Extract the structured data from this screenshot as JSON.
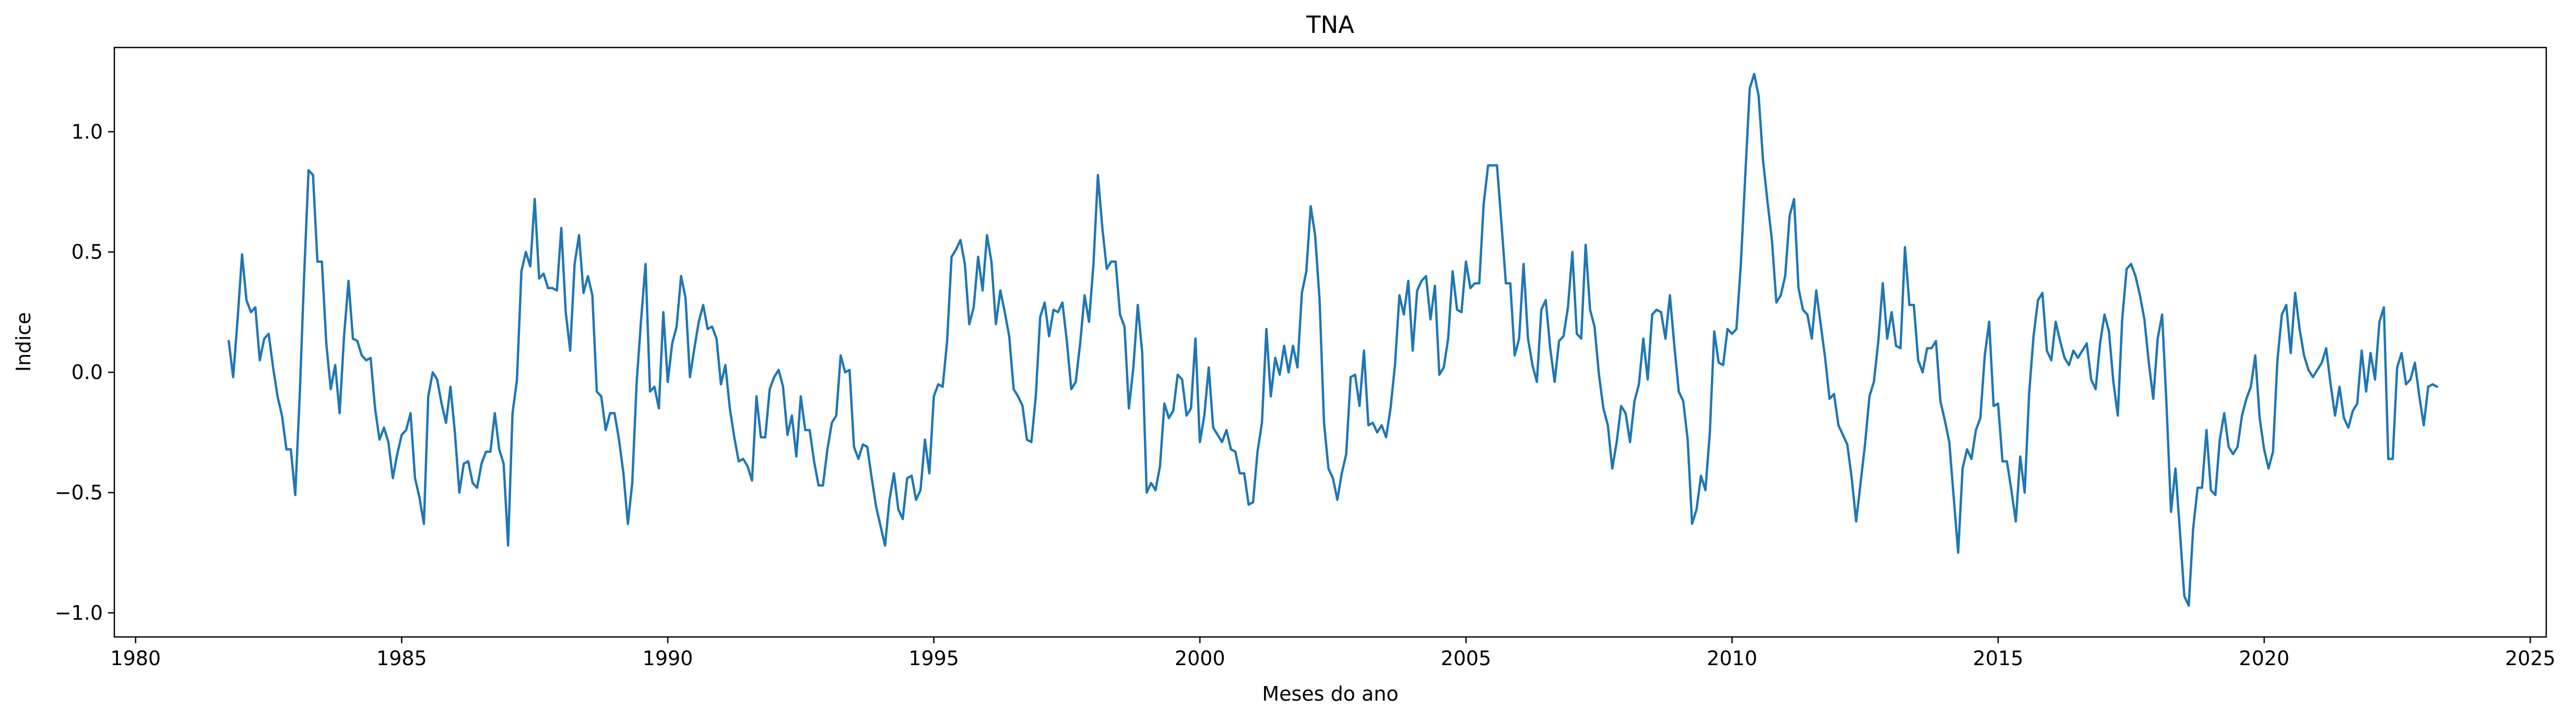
{
  "chart_data": {
    "type": "line",
    "title": "TNA",
    "xlabel": "Meses do ano",
    "ylabel": "Indice",
    "x_ticks": [
      1980,
      1985,
      1990,
      1995,
      2000,
      2005,
      2010,
      2015,
      2020,
      2025
    ],
    "y_ticks": [
      -1.0,
      -0.5,
      0.0,
      0.5,
      1.0
    ],
    "y_tick_labels": [
      "−1.0",
      "−0.5",
      "0.0",
      "0.5",
      "1.0"
    ],
    "xlim": [
      1979.6,
      2025.3
    ],
    "ylim": [
      -1.1,
      1.35
    ],
    "grid": false,
    "color": "#1f77b4",
    "series": [
      {
        "x_start": 1981.75,
        "x_step": 0.08333,
        "values": [
          0.13,
          -0.02,
          0.22,
          0.49,
          0.3,
          0.25,
          0.27,
          0.05,
          0.14,
          0.16,
          0.02,
          -0.1,
          -0.18,
          -0.32,
          -0.32,
          -0.51,
          -0.1,
          0.4,
          0.84,
          0.82,
          0.46,
          0.46,
          0.12,
          -0.07,
          0.03,
          -0.17,
          0.15,
          0.38,
          0.14,
          0.13,
          0.07,
          0.05,
          0.06,
          -0.15,
          -0.28,
          -0.23,
          -0.29,
          -0.44,
          -0.34,
          -0.26,
          -0.24,
          -0.17,
          -0.44,
          -0.52,
          -0.63,
          -0.1,
          0.0,
          -0.03,
          -0.13,
          -0.21,
          -0.06,
          -0.25,
          -0.5,
          -0.38,
          -0.37,
          -0.46,
          -0.48,
          -0.38,
          -0.33,
          -0.33,
          -0.17,
          -0.32,
          -0.38,
          -0.72,
          -0.17,
          -0.03,
          0.42,
          0.5,
          0.44,
          0.72,
          0.39,
          0.41,
          0.35,
          0.35,
          0.34,
          0.6,
          0.25,
          0.09,
          0.45,
          0.57,
          0.33,
          0.4,
          0.32,
          -0.08,
          -0.1,
          -0.24,
          -0.17,
          -0.17,
          -0.28,
          -0.42,
          -0.63,
          -0.46,
          -0.04,
          0.22,
          0.45,
          -0.08,
          -0.06,
          -0.15,
          0.25,
          -0.04,
          0.12,
          0.19,
          0.4,
          0.31,
          -0.02,
          0.1,
          0.21,
          0.28,
          0.18,
          0.19,
          0.14,
          -0.05,
          0.03,
          -0.15,
          -0.27,
          -0.37,
          -0.36,
          -0.39,
          -0.45,
          -0.1,
          -0.27,
          -0.27,
          -0.07,
          -0.02,
          0.01,
          -0.06,
          -0.26,
          -0.18,
          -0.35,
          -0.1,
          -0.24,
          -0.24,
          -0.37,
          -0.47,
          -0.47,
          -0.32,
          -0.21,
          -0.18,
          0.07,
          0.0,
          0.01,
          -0.31,
          -0.36,
          -0.3,
          -0.31,
          -0.44,
          -0.56,
          -0.64,
          -0.72,
          -0.53,
          -0.42,
          -0.57,
          -0.61,
          -0.44,
          -0.43,
          -0.53,
          -0.49,
          -0.28,
          -0.42,
          -0.1,
          -0.05,
          -0.06,
          0.13,
          0.48,
          0.51,
          0.55,
          0.45,
          0.2,
          0.27,
          0.48,
          0.34,
          0.57,
          0.46,
          0.2,
          0.34,
          0.25,
          0.15,
          -0.07,
          -0.1,
          -0.14,
          -0.28,
          -0.29,
          -0.1,
          0.23,
          0.29,
          0.15,
          0.26,
          0.25,
          0.29,
          0.13,
          -0.07,
          -0.04,
          0.12,
          0.32,
          0.21,
          0.45,
          0.82,
          0.6,
          0.43,
          0.46,
          0.46,
          0.24,
          0.19,
          -0.15,
          0.02,
          0.28,
          0.08,
          -0.5,
          -0.46,
          -0.49,
          -0.39,
          -0.13,
          -0.19,
          -0.16,
          -0.01,
          -0.03,
          -0.18,
          -0.15,
          0.14,
          -0.29,
          -0.18,
          0.02,
          -0.23,
          -0.26,
          -0.29,
          -0.24,
          -0.32,
          -0.33,
          -0.42,
          -0.42,
          -0.55,
          -0.54,
          -0.33,
          -0.21,
          0.18,
          -0.1,
          0.06,
          -0.01,
          0.11,
          0.0,
          0.11,
          0.02,
          0.33,
          0.42,
          0.69,
          0.57,
          0.3,
          -0.21,
          -0.4,
          -0.44,
          -0.53,
          -0.42,
          -0.34,
          -0.02,
          -0.01,
          -0.14,
          0.09,
          -0.22,
          -0.21,
          -0.25,
          -0.22,
          -0.27,
          -0.15,
          0.03,
          0.32,
          0.24,
          0.38,
          0.09,
          0.34,
          0.38,
          0.4,
          0.22,
          0.36,
          -0.01,
          0.02,
          0.14,
          0.42,
          0.26,
          0.25,
          0.46,
          0.35,
          0.37,
          0.37,
          0.7,
          0.86,
          0.86,
          0.86,
          0.62,
          0.37,
          0.37,
          0.07,
          0.14,
          0.45,
          0.14,
          0.03,
          -0.04,
          0.26,
          0.3,
          0.1,
          -0.04,
          0.13,
          0.15,
          0.27,
          0.5,
          0.16,
          0.14,
          0.53,
          0.26,
          0.19,
          -0.01,
          -0.15,
          -0.22,
          -0.4,
          -0.29,
          -0.14,
          -0.17,
          -0.29,
          -0.12,
          -0.05,
          0.14,
          -0.03,
          0.24,
          0.26,
          0.25,
          0.14,
          0.32,
          0.11,
          -0.08,
          -0.12,
          -0.28,
          -0.63,
          -0.57,
          -0.43,
          -0.49,
          -0.25,
          0.17,
          0.04,
          0.03,
          0.18,
          0.16,
          0.18,
          0.45,
          0.82,
          1.18,
          1.24,
          1.15,
          0.88,
          0.71,
          0.55,
          0.29,
          0.32,
          0.4,
          0.65,
          0.72,
          0.35,
          0.26,
          0.24,
          0.14,
          0.34,
          0.2,
          0.06,
          -0.11,
          -0.09,
          -0.22,
          -0.26,
          -0.3,
          -0.44,
          -0.62,
          -0.46,
          -0.3,
          -0.1,
          -0.04,
          0.13,
          0.37,
          0.14,
          0.25,
          0.11,
          0.1,
          0.52,
          0.28,
          0.28,
          0.05,
          0.0,
          0.1,
          0.1,
          0.13,
          -0.12,
          -0.2,
          -0.29,
          -0.52,
          -0.75,
          -0.4,
          -0.32,
          -0.36,
          -0.24,
          -0.19,
          0.07,
          0.21,
          -0.14,
          -0.13,
          -0.37,
          -0.37,
          -0.49,
          -0.62,
          -0.35,
          -0.5,
          -0.09,
          0.15,
          0.3,
          0.33,
          0.09,
          0.05,
          0.21,
          0.13,
          0.06,
          0.03,
          0.09,
          0.06,
          0.09,
          0.12,
          -0.03,
          -0.07,
          0.12,
          0.24,
          0.17,
          -0.04,
          -0.18,
          0.22,
          0.43,
          0.45,
          0.4,
          0.32,
          0.22,
          0.04,
          -0.11,
          0.14,
          0.24,
          -0.14,
          -0.58,
          -0.4,
          -0.66,
          -0.93,
          -0.97,
          -0.65,
          -0.48,
          -0.48,
          -0.24,
          -0.49,
          -0.51,
          -0.28,
          -0.17,
          -0.31,
          -0.34,
          -0.31,
          -0.18,
          -0.11,
          -0.06,
          0.07,
          -0.19,
          -0.32,
          -0.4,
          -0.33,
          0.05,
          0.24,
          0.28,
          0.08,
          0.33,
          0.18,
          0.07,
          0.01,
          -0.02,
          0.01,
          0.04,
          0.1,
          -0.05,
          -0.18,
          -0.06,
          -0.19,
          -0.23,
          -0.16,
          -0.13,
          0.09,
          -0.08,
          0.08,
          -0.03,
          0.21,
          0.27,
          -0.36,
          -0.36,
          0.02,
          0.08,
          -0.05,
          -0.03,
          0.04,
          -0.1,
          -0.22,
          -0.06,
          -0.05,
          -0.06
        ]
      }
    ]
  }
}
